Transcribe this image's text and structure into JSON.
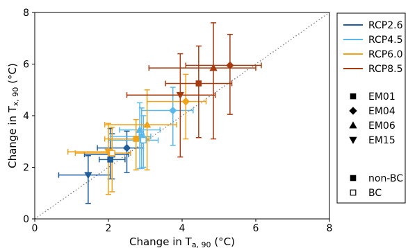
{
  "chart_data": {
    "type": "scatter",
    "xlabel": {
      "main": "Change in T",
      "sub": "a, 90",
      "unit": " (°C)"
    },
    "ylabel": {
      "main": "Change in T",
      "sub": "x, 90",
      "unit": " (°C)"
    },
    "xlim": [
      0,
      8
    ],
    "ylim": [
      0,
      8
    ],
    "xticks": [
      0,
      2,
      4,
      6,
      8
    ],
    "yticks": [
      0,
      2,
      4,
      6,
      8
    ],
    "grid": false,
    "identity_line": true,
    "legend_placement": "outside-right",
    "legend": {
      "scenarios": [
        "RCP2.6",
        "RCP4.5",
        "RCP6.0",
        "RCP8.5"
      ],
      "models": [
        "EM01",
        "EM04",
        "EM06",
        "EM15"
      ],
      "types": [
        "non-BC",
        "BC"
      ]
    },
    "colors": {
      "RCP2.6": "#1f5c99",
      "RCP4.5": "#5bb8ea",
      "RCP6.0": "#f0a219",
      "RCP8.5": "#a63b0f"
    },
    "series": [
      {
        "scenario": "RCP2.6",
        "model": "EM01",
        "bc": false,
        "x": 2.05,
        "y": 2.3,
        "xerr": [
          1.75,
          2.45
        ],
        "yerr": [
          1.55,
          3.5
        ]
      },
      {
        "scenario": "RCP2.6",
        "model": "EM04",
        "bc": false,
        "x": 2.5,
        "y": 2.75,
        "xerr": [
          1.7,
          2.95
        ],
        "yerr": [
          1.8,
          3.4
        ]
      },
      {
        "scenario": "RCP2.6",
        "model": "EM15",
        "bc": false,
        "x": 1.45,
        "y": 1.7,
        "xerr": [
          0.65,
          2.05
        ],
        "yerr": [
          0.6,
          2.45
        ]
      },
      {
        "scenario": "RCP2.6",
        "model": "EM01",
        "bc": true,
        "x": 2.1,
        "y": 2.5,
        "xerr": [
          1.35,
          2.55
        ],
        "yerr": [
          1.55,
          3.3
        ]
      },
      {
        "scenario": "RCP4.5",
        "model": "EM01",
        "bc": false,
        "x": 2.9,
        "y": 3.2,
        "xerr": [
          2.05,
          3.15
        ],
        "yerr": [
          1.95,
          4.3
        ]
      },
      {
        "scenario": "RCP4.5",
        "model": "EM04",
        "bc": false,
        "x": 3.75,
        "y": 4.2,
        "xerr": [
          2.9,
          4.3
        ],
        "yerr": [
          2.85,
          5.1
        ]
      },
      {
        "scenario": "RCP4.5",
        "model": "EM06",
        "bc": false,
        "x": 2.85,
        "y": 3.45,
        "xerr": [
          2.3,
          3.4
        ],
        "yerr": [
          1.95,
          4.5
        ]
      },
      {
        "scenario": "RCP4.5",
        "model": "EM01",
        "bc": true,
        "x": 2.95,
        "y": 3.05,
        "xerr": [
          2.0,
          3.35
        ],
        "yerr": [
          2.0,
          4.0
        ]
      },
      {
        "scenario": "RCP6.0",
        "model": "EM01",
        "bc": false,
        "x": 2.75,
        "y": 3.1,
        "xerr": [
          1.9,
          3.1
        ],
        "yerr": [
          1.9,
          3.85
        ]
      },
      {
        "scenario": "RCP6.0",
        "model": "EM04",
        "bc": false,
        "x": 4.1,
        "y": 4.55,
        "xerr": [
          3.05,
          4.65
        ],
        "yerr": [
          3.1,
          5.6
        ]
      },
      {
        "scenario": "RCP6.0",
        "model": "EM06",
        "bc": false,
        "x": 3.05,
        "y": 3.65,
        "xerr": [
          1.9,
          3.85
        ],
        "yerr": [
          1.9,
          5.0
        ]
      },
      {
        "scenario": "RCP6.0",
        "model": "EM15",
        "bc": false,
        "x": 2.0,
        "y": 2.6,
        "xerr": [
          0.9,
          2.1
        ],
        "yerr": [
          0.95,
          3.7
        ]
      },
      {
        "scenario": "RCP6.0",
        "model": "EM01",
        "bc": true,
        "x": 2.1,
        "y": 2.55,
        "xerr": [
          1.1,
          2.6
        ],
        "yerr": [
          1.05,
          3.55
        ]
      },
      {
        "scenario": "RCP8.5",
        "model": "EM01",
        "bc": false,
        "x": 4.45,
        "y": 5.25,
        "xerr": [
          3.55,
          5.35
        ],
        "yerr": [
          3.15,
          6.7
        ]
      },
      {
        "scenario": "RCP8.5",
        "model": "EM04",
        "bc": false,
        "x": 5.3,
        "y": 5.95,
        "xerr": [
          4.1,
          6.15
        ],
        "yerr": [
          4.05,
          7.15
        ]
      },
      {
        "scenario": "RCP8.5",
        "model": "EM06",
        "bc": false,
        "x": 4.85,
        "y": 5.85,
        "xerr": [
          3.1,
          6.0
        ],
        "yerr": [
          3.1,
          7.6
        ]
      },
      {
        "scenario": "RCP8.5",
        "model": "EM15",
        "bc": false,
        "x": 3.95,
        "y": 4.8,
        "xerr": [
          2.5,
          4.9
        ],
        "yerr": [
          2.4,
          6.4
        ]
      }
    ]
  }
}
